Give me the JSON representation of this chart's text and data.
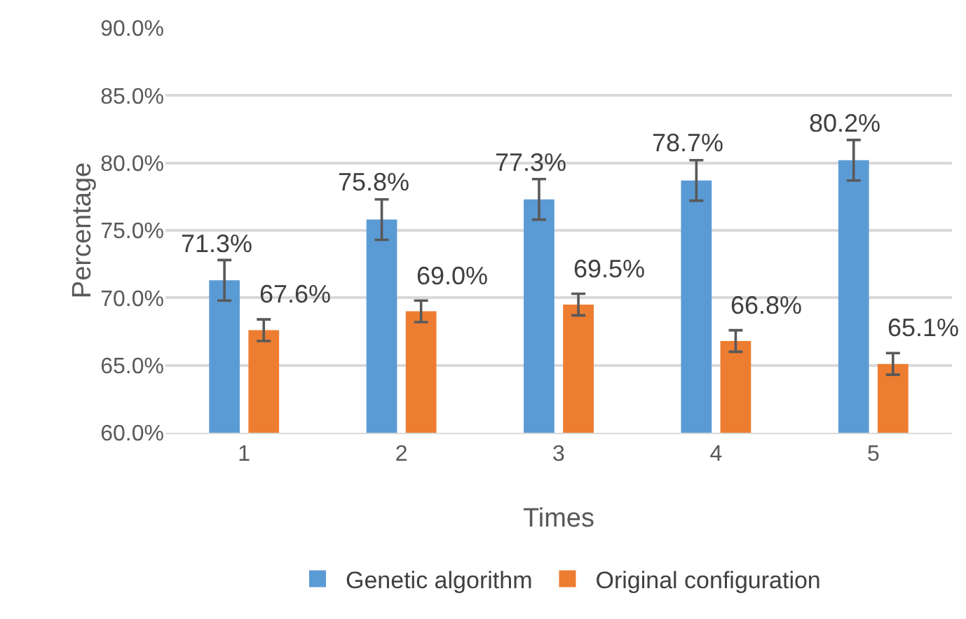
{
  "chart_data": {
    "type": "bar",
    "xlabel": "Times",
    "ylabel": "Percentage",
    "categories": [
      "1",
      "2",
      "3",
      "4",
      "5"
    ],
    "series": [
      {
        "name": "Genetic algorithm",
        "color": "#5b9bd5",
        "values": [
          71.3,
          75.8,
          77.3,
          78.7,
          80.2
        ],
        "errors": [
          1.5,
          1.5,
          1.5,
          1.5,
          1.5
        ],
        "value_labels": [
          "71.3%",
          "75.8%",
          "77.3%",
          "78.7%",
          "80.2%"
        ]
      },
      {
        "name": "Original configuration",
        "color": "#ed7d31",
        "values": [
          67.6,
          69.0,
          69.5,
          66.8,
          65.1
        ],
        "errors": [
          0.8,
          0.8,
          0.8,
          0.8,
          0.8
        ],
        "value_labels": [
          "67.6%",
          "69.0%",
          "69.5%",
          "66.8%",
          "65.1%"
        ]
      }
    ],
    "ylim": [
      60,
      90
    ],
    "yticks": [
      {
        "value": 60,
        "label": "60.0%"
      },
      {
        "value": 65,
        "label": "65.0%"
      },
      {
        "value": 70,
        "label": "70.0%"
      },
      {
        "value": 75,
        "label": "75.0%"
      },
      {
        "value": 80,
        "label": "80.0%"
      },
      {
        "value": 85,
        "label": "85.0%"
      },
      {
        "value": 90,
        "label": "90.0%"
      }
    ],
    "grid": "y",
    "legend": "bottom"
  }
}
